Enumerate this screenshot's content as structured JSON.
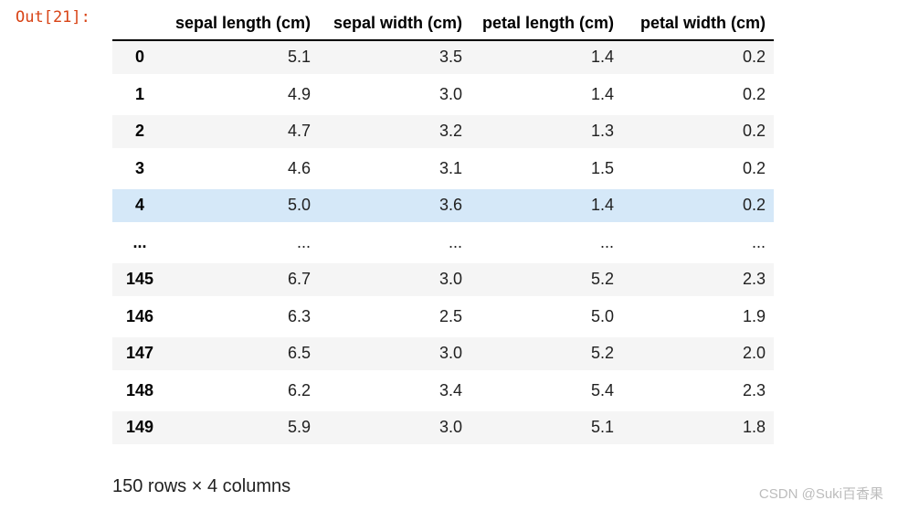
{
  "prompt": {
    "label": "Out[21]:"
  },
  "table": {
    "columns": [
      "sepal length (cm)",
      "sepal width (cm)",
      "petal length (cm)",
      "petal width (cm)"
    ],
    "rows": [
      {
        "index": "0",
        "values": [
          "5.1",
          "3.5",
          "1.4",
          "0.2"
        ],
        "highlight": false
      },
      {
        "index": "1",
        "values": [
          "4.9",
          "3.0",
          "1.4",
          "0.2"
        ],
        "highlight": false
      },
      {
        "index": "2",
        "values": [
          "4.7",
          "3.2",
          "1.3",
          "0.2"
        ],
        "highlight": false
      },
      {
        "index": "3",
        "values": [
          "4.6",
          "3.1",
          "1.5",
          "0.2"
        ],
        "highlight": false
      },
      {
        "index": "4",
        "values": [
          "5.0",
          "3.6",
          "1.4",
          "0.2"
        ],
        "highlight": true
      },
      {
        "index": "...",
        "values": [
          "...",
          "...",
          "...",
          "..."
        ],
        "highlight": false
      },
      {
        "index": "145",
        "values": [
          "6.7",
          "3.0",
          "5.2",
          "2.3"
        ],
        "highlight": false
      },
      {
        "index": "146",
        "values": [
          "6.3",
          "2.5",
          "5.0",
          "1.9"
        ],
        "highlight": false
      },
      {
        "index": "147",
        "values": [
          "6.5",
          "3.0",
          "5.2",
          "2.0"
        ],
        "highlight": false
      },
      {
        "index": "148",
        "values": [
          "6.2",
          "3.4",
          "5.4",
          "2.3"
        ],
        "highlight": false
      },
      {
        "index": "149",
        "values": [
          "5.9",
          "3.0",
          "5.1",
          "1.8"
        ],
        "highlight": false
      }
    ],
    "summary": "150 rows × 4 columns"
  },
  "watermark": "CSDN @Suki百香果",
  "colors": {
    "prompt": "#d84315",
    "stripe": "#f5f5f5",
    "highlight_row": "#d5e8f8",
    "header_border": "#000000",
    "watermark": "#bcbcbc"
  }
}
